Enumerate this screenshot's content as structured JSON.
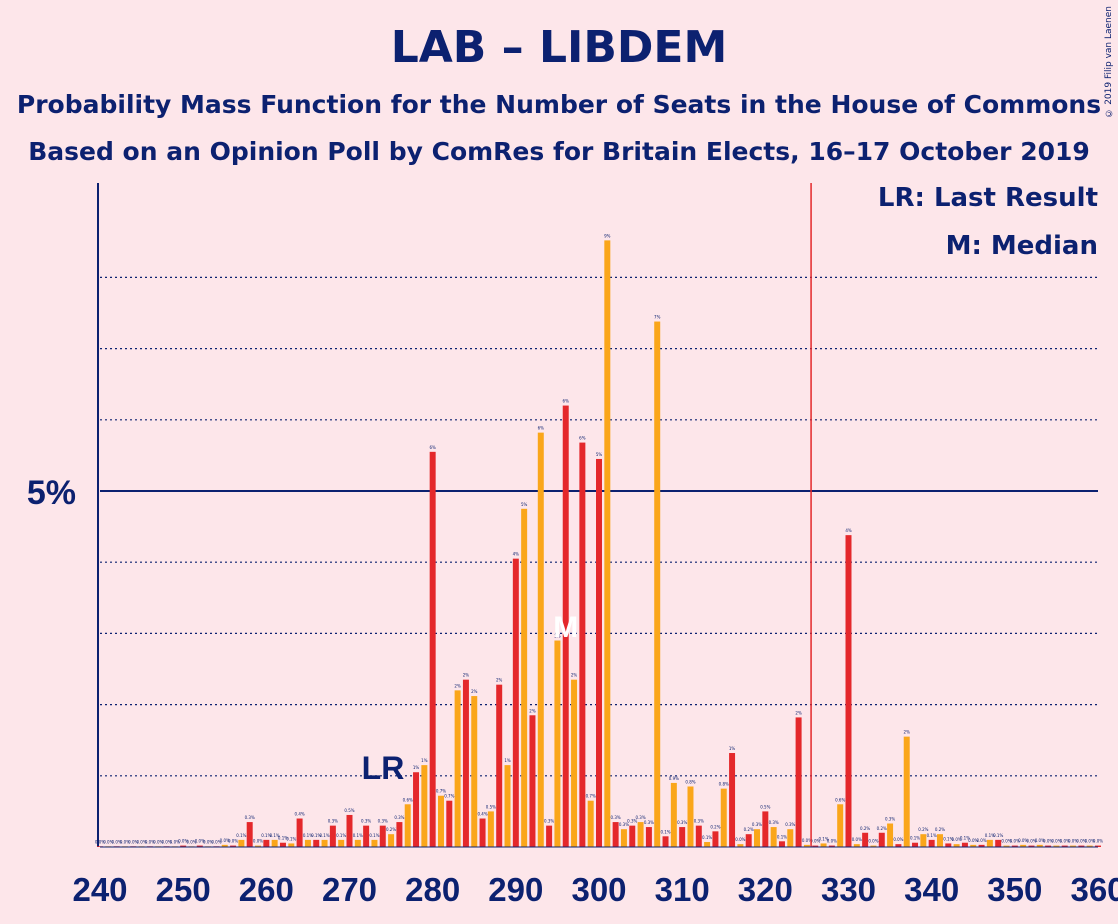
{
  "title": "LAB – LIBDEM",
  "subtitle1": "Probability Mass Function for the Number of Seats in the House of Commons",
  "subtitle2": "Based on an Opinion Poll by ComRes for Britain Elects, 16–17 October 2019",
  "credit": "© 2019 Filip van Laenen",
  "legend": {
    "last_result": "LR: Last Result",
    "median": "M: Median"
  },
  "colors": {
    "lab": "#e4282b",
    "libdem": "#faa61a",
    "axis": "#0c2170",
    "background": "#fde6ea"
  },
  "chart_data": {
    "type": "bar",
    "xlabel": "",
    "ylabel": "",
    "xlim": [
      240,
      360
    ],
    "ylim": [
      0,
      9.2
    ],
    "x_ticks": [
      240,
      250,
      260,
      270,
      280,
      290,
      300,
      310,
      320,
      330,
      340,
      350,
      360
    ],
    "y_tick_label": "5%",
    "y_tick_value": 5,
    "grid": "dotted every 1%, solid at 5%",
    "last_result": 326,
    "last_result_label": "LR",
    "median_label": "M",
    "median": 296,
    "series": [
      {
        "x": [
          240,
          241,
          242,
          243,
          244,
          245,
          246,
          247,
          248,
          249,
          250,
          251,
          252,
          253,
          254,
          255,
          256,
          257,
          258,
          259,
          260,
          261,
          262,
          263,
          264,
          265,
          266,
          267,
          268,
          269,
          270,
          271,
          272,
          273,
          274,
          275,
          276,
          277,
          278,
          279,
          280,
          281,
          282,
          283,
          284,
          285,
          286,
          287,
          288,
          289,
          290,
          291,
          292,
          293,
          294,
          295,
          296,
          297,
          298,
          299,
          300,
          301,
          302,
          303,
          304,
          305,
          306,
          307,
          308,
          309,
          310,
          311,
          312,
          313,
          314,
          315,
          316,
          317,
          318,
          319,
          320,
          321,
          322,
          323,
          324,
          325,
          326,
          327,
          328,
          329,
          330,
          331,
          332,
          333,
          334,
          335,
          336,
          337,
          338,
          339,
          340,
          341,
          342,
          343,
          344,
          345,
          346,
          347,
          348,
          349,
          350,
          351,
          352,
          353,
          354,
          355,
          356,
          357,
          358,
          359,
          360
        ],
        "values": [
          0.01,
          0.01,
          0.01,
          0.01,
          0.01,
          0.01,
          0.01,
          0.01,
          0.01,
          0.01,
          0.02,
          0.01,
          0.02,
          0.01,
          0.01,
          0.03,
          0.02,
          0.1,
          0.35,
          0.02,
          0.1,
          0.1,
          0.06,
          0.05,
          0.4,
          0.1,
          0.1,
          0.1,
          0.3,
          0.1,
          0.45,
          0.1,
          0.3,
          0.1,
          0.3,
          0.18,
          0.35,
          0.6,
          1.05,
          1.15,
          5.55,
          0.72,
          0.65,
          2.2,
          2.35,
          2.12,
          0.4,
          0.5,
          2.28,
          1.15,
          4.05,
          4.75,
          1.85,
          5.82,
          0.3,
          2.9,
          6.2,
          2.35,
          5.68,
          0.65,
          5.45,
          8.52,
          0.35,
          0.25,
          0.3,
          0.35,
          0.28,
          7.38,
          0.15,
          0.9,
          0.28,
          0.85,
          0.3,
          0.07,
          0.22,
          0.82,
          1.32,
          0.04,
          0.18,
          0.25,
          0.5,
          0.28,
          0.08,
          0.25,
          1.82,
          0.03,
          0.02,
          0.05,
          0.02,
          0.6,
          4.38,
          0.04,
          0.2,
          0.02,
          0.2,
          0.33,
          0.04,
          1.55,
          0.06,
          0.18,
          0.1,
          0.18,
          0.05,
          0.04,
          0.06,
          0.03,
          0.03,
          0.1,
          0.1,
          0.02,
          0.02,
          0.03,
          0.02,
          0.03,
          0.02,
          0.02,
          0.02,
          0.02,
          0.02,
          0.02,
          0.02
        ]
      }
    ]
  },
  "median_marker_text": "M"
}
